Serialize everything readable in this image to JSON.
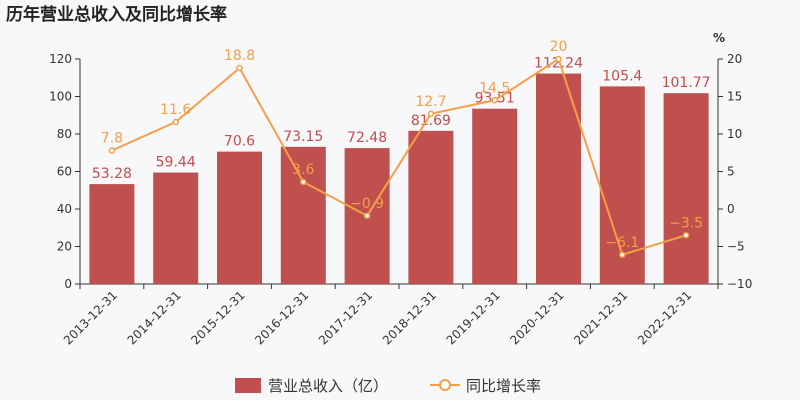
{
  "chart_data": {
    "type": "bar",
    "title": "历年营业总收入及同比增长率",
    "categories": [
      "2013-12-31",
      "2014-12-31",
      "2015-12-31",
      "2016-12-31",
      "2017-12-31",
      "2018-12-31",
      "2019-12-31",
      "2020-12-31",
      "2021-12-31",
      "2022-12-31"
    ],
    "series": [
      {
        "name": "营业总收入（亿）",
        "type": "bar",
        "axis": "left",
        "color": "#c0504d",
        "values": [
          53.28,
          59.44,
          70.6,
          73.15,
          72.48,
          81.69,
          93.51,
          112.24,
          105.4,
          101.77
        ],
        "labels": [
          "53.28",
          "59.44",
          "70.6",
          "73.15",
          "72.48",
          "81.69",
          "93.51",
          "112.24",
          "105.4",
          "101.77"
        ]
      },
      {
        "name": "同比增长率",
        "type": "line",
        "axis": "right",
        "color": "#f2a04a",
        "values": [
          7.8,
          11.6,
          18.8,
          3.6,
          -0.9,
          12.7,
          14.5,
          20,
          -6.1,
          -3.5
        ],
        "labels": [
          "7.8",
          "11.6",
          "18.8",
          "3.6",
          "−0.9",
          "12.7",
          "14.5",
          "20",
          "−6.1",
          "−3.5"
        ]
      }
    ],
    "y_left": {
      "min": 0,
      "max": 120,
      "ticks": [
        "0",
        "20",
        "40",
        "60",
        "80",
        "100",
        "120"
      ]
    },
    "y_right": {
      "min": -10,
      "max": 20,
      "unit": "%",
      "ticks": [
        "−10",
        "−5",
        "0",
        "5",
        "10",
        "15",
        "20"
      ]
    },
    "legend_position": "bottom",
    "grid": false
  }
}
